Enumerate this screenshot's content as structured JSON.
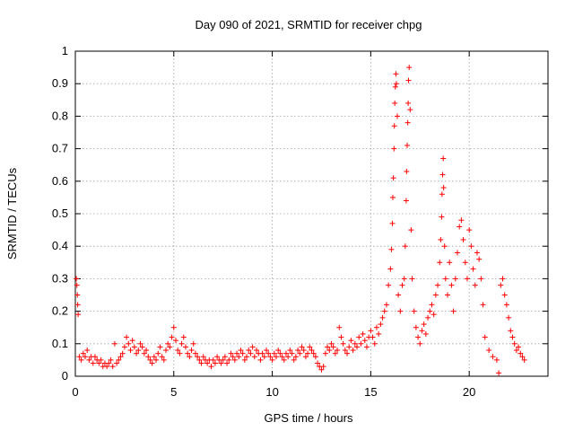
{
  "chart_data": {
    "type": "scatter",
    "title": "Day 090 of 2021, SRMTID for receiver chpg",
    "xlabel": "GPS time / hours",
    "ylabel": "SRMTID / TECUs",
    "xlim": [
      0,
      24
    ],
    "ylim": [
      0,
      1
    ],
    "xticks": [
      "0",
      "5",
      "10",
      "15",
      "20"
    ],
    "xtick_values": [
      0,
      5,
      10,
      15,
      20
    ],
    "yticks": [
      "0",
      "0.1",
      "0.2",
      "0.3",
      "0.4",
      "0.5",
      "0.6",
      "0.7",
      "0.8",
      "0.9",
      "1"
    ],
    "ytick_values": [
      0,
      0.1,
      0.2,
      0.3,
      0.4,
      0.5,
      0.6,
      0.7,
      0.8,
      0.9,
      1.0
    ],
    "grid": true,
    "marker": "+",
    "color": "#ff0000",
    "series": [
      {
        "name": "SRMTID",
        "points": [
          [
            0.05,
            0.3
          ],
          [
            0.08,
            0.28
          ],
          [
            0.1,
            0.25
          ],
          [
            0.12,
            0.22
          ],
          [
            0.14,
            0.19
          ],
          [
            0.2,
            0.06
          ],
          [
            0.3,
            0.05
          ],
          [
            0.4,
            0.07
          ],
          [
            0.5,
            0.06
          ],
          [
            0.6,
            0.08
          ],
          [
            0.7,
            0.05
          ],
          [
            0.8,
            0.06
          ],
          [
            0.9,
            0.04
          ],
          [
            1.0,
            0.06
          ],
          [
            1.1,
            0.05
          ],
          [
            1.2,
            0.04
          ],
          [
            1.3,
            0.05
          ],
          [
            1.4,
            0.03
          ],
          [
            1.5,
            0.04
          ],
          [
            1.6,
            0.03
          ],
          [
            1.7,
            0.04
          ],
          [
            1.8,
            0.05
          ],
          [
            1.9,
            0.03
          ],
          [
            2.0,
            0.1
          ],
          [
            2.1,
            0.04
          ],
          [
            2.2,
            0.05
          ],
          [
            2.3,
            0.06
          ],
          [
            2.4,
            0.07
          ],
          [
            2.5,
            0.09
          ],
          [
            2.6,
            0.12
          ],
          [
            2.7,
            0.1
          ],
          [
            2.8,
            0.08
          ],
          [
            2.9,
            0.11
          ],
          [
            3.0,
            0.09
          ],
          [
            3.1,
            0.07
          ],
          [
            3.2,
            0.08
          ],
          [
            3.3,
            0.1
          ],
          [
            3.4,
            0.09
          ],
          [
            3.5,
            0.07
          ],
          [
            3.6,
            0.08
          ],
          [
            3.7,
            0.06
          ],
          [
            3.8,
            0.05
          ],
          [
            3.9,
            0.04
          ],
          [
            4.0,
            0.06
          ],
          [
            4.1,
            0.05
          ],
          [
            4.2,
            0.07
          ],
          [
            4.3,
            0.09
          ],
          [
            4.4,
            0.06
          ],
          [
            4.5,
            0.05
          ],
          [
            4.6,
            0.08
          ],
          [
            4.7,
            0.1
          ],
          [
            4.8,
            0.09
          ],
          [
            4.9,
            0.12
          ],
          [
            5.0,
            0.15
          ],
          [
            5.1,
            0.11
          ],
          [
            5.2,
            0.08
          ],
          [
            5.3,
            0.07
          ],
          [
            5.4,
            0.1
          ],
          [
            5.5,
            0.12
          ],
          [
            5.6,
            0.09
          ],
          [
            5.7,
            0.07
          ],
          [
            5.8,
            0.06
          ],
          [
            5.9,
            0.08
          ],
          [
            6.0,
            0.1
          ],
          [
            6.1,
            0.07
          ],
          [
            6.2,
            0.06
          ],
          [
            6.3,
            0.05
          ],
          [
            6.4,
            0.04
          ],
          [
            6.5,
            0.06
          ],
          [
            6.6,
            0.05
          ],
          [
            6.7,
            0.04
          ],
          [
            6.8,
            0.05
          ],
          [
            6.9,
            0.03
          ],
          [
            7.0,
            0.05
          ],
          [
            7.1,
            0.04
          ],
          [
            7.2,
            0.06
          ],
          [
            7.3,
            0.05
          ],
          [
            7.4,
            0.04
          ],
          [
            7.5,
            0.05
          ],
          [
            7.6,
            0.06
          ],
          [
            7.7,
            0.04
          ],
          [
            7.8,
            0.05
          ],
          [
            7.9,
            0.07
          ],
          [
            8.0,
            0.06
          ],
          [
            8.1,
            0.05
          ],
          [
            8.2,
            0.07
          ],
          [
            8.3,
            0.06
          ],
          [
            8.4,
            0.08
          ],
          [
            8.5,
            0.07
          ],
          [
            8.6,
            0.05
          ],
          [
            8.7,
            0.06
          ],
          [
            8.8,
            0.08
          ],
          [
            8.9,
            0.07
          ],
          [
            9.0,
            0.09
          ],
          [
            9.1,
            0.06
          ],
          [
            9.2,
            0.08
          ],
          [
            9.3,
            0.07
          ],
          [
            9.4,
            0.05
          ],
          [
            9.5,
            0.07
          ],
          [
            9.6,
            0.06
          ],
          [
            9.7,
            0.08
          ],
          [
            9.8,
            0.07
          ],
          [
            9.9,
            0.06
          ],
          [
            10.0,
            0.05
          ],
          [
            10.1,
            0.07
          ],
          [
            10.2,
            0.06
          ],
          [
            10.3,
            0.08
          ],
          [
            10.4,
            0.07
          ],
          [
            10.5,
            0.06
          ],
          [
            10.6,
            0.05
          ],
          [
            10.7,
            0.07
          ],
          [
            10.8,
            0.06
          ],
          [
            10.9,
            0.08
          ],
          [
            11.0,
            0.07
          ],
          [
            11.1,
            0.05
          ],
          [
            11.2,
            0.06
          ],
          [
            11.3,
            0.08
          ],
          [
            11.4,
            0.07
          ],
          [
            11.5,
            0.09
          ],
          [
            11.6,
            0.08
          ],
          [
            11.7,
            0.06
          ],
          [
            11.8,
            0.07
          ],
          [
            11.9,
            0.09
          ],
          [
            12.0,
            0.08
          ],
          [
            12.1,
            0.07
          ],
          [
            12.2,
            0.06
          ],
          [
            12.3,
            0.04
          ],
          [
            12.4,
            0.03
          ],
          [
            12.5,
            0.02
          ],
          [
            12.6,
            0.03
          ],
          [
            12.7,
            0.07
          ],
          [
            12.8,
            0.09
          ],
          [
            12.9,
            0.08
          ],
          [
            13.0,
            0.1
          ],
          [
            13.1,
            0.09
          ],
          [
            13.2,
            0.07
          ],
          [
            13.3,
            0.08
          ],
          [
            13.4,
            0.15
          ],
          [
            13.5,
            0.12
          ],
          [
            13.6,
            0.1
          ],
          [
            13.7,
            0.08
          ],
          [
            13.8,
            0.07
          ],
          [
            13.9,
            0.09
          ],
          [
            14.0,
            0.11
          ],
          [
            14.1,
            0.08
          ],
          [
            14.2,
            0.1
          ],
          [
            14.3,
            0.09
          ],
          [
            14.4,
            0.12
          ],
          [
            14.5,
            0.1
          ],
          [
            14.6,
            0.13
          ],
          [
            14.7,
            0.11
          ],
          [
            14.8,
            0.09
          ],
          [
            14.9,
            0.12
          ],
          [
            15.0,
            0.14
          ],
          [
            15.1,
            0.12
          ],
          [
            15.2,
            0.1
          ],
          [
            15.3,
            0.15
          ],
          [
            15.4,
            0.13
          ],
          [
            15.5,
            0.16
          ],
          [
            15.6,
            0.18
          ],
          [
            15.7,
            0.2
          ],
          [
            15.8,
            0.22
          ],
          [
            15.9,
            0.28
          ],
          [
            16.0,
            0.33
          ],
          [
            16.05,
            0.39
          ],
          [
            16.1,
            0.47
          ],
          [
            16.12,
            0.55
          ],
          [
            16.15,
            0.61
          ],
          [
            16.18,
            0.7
          ],
          [
            16.2,
            0.77
          ],
          [
            16.22,
            0.84
          ],
          [
            16.25,
            0.89
          ],
          [
            16.28,
            0.93
          ],
          [
            16.3,
            0.9
          ],
          [
            16.35,
            0.8
          ],
          [
            16.4,
            0.25
          ],
          [
            16.5,
            0.2
          ],
          [
            16.6,
            0.28
          ],
          [
            16.7,
            0.3
          ],
          [
            16.75,
            0.4
          ],
          [
            16.8,
            0.54
          ],
          [
            16.82,
            0.63
          ],
          [
            16.85,
            0.71
          ],
          [
            16.88,
            0.78
          ],
          [
            16.9,
            0.84
          ],
          [
            16.92,
            0.91
          ],
          [
            16.95,
            0.95
          ],
          [
            17.0,
            0.82
          ],
          [
            17.05,
            0.45
          ],
          [
            17.1,
            0.3
          ],
          [
            17.2,
            0.2
          ],
          [
            17.3,
            0.15
          ],
          [
            17.4,
            0.12
          ],
          [
            17.5,
            0.1
          ],
          [
            17.6,
            0.14
          ],
          [
            17.7,
            0.16
          ],
          [
            17.8,
            0.13
          ],
          [
            17.9,
            0.18
          ],
          [
            18.0,
            0.2
          ],
          [
            18.1,
            0.22
          ],
          [
            18.2,
            0.19
          ],
          [
            18.3,
            0.25
          ],
          [
            18.4,
            0.28
          ],
          [
            18.5,
            0.35
          ],
          [
            18.55,
            0.42
          ],
          [
            18.6,
            0.49
          ],
          [
            18.62,
            0.56
          ],
          [
            18.65,
            0.62
          ],
          [
            18.68,
            0.67
          ],
          [
            18.7,
            0.58
          ],
          [
            18.75,
            0.4
          ],
          [
            18.8,
            0.3
          ],
          [
            18.9,
            0.25
          ],
          [
            19.0,
            0.35
          ],
          [
            19.1,
            0.28
          ],
          [
            19.2,
            0.2
          ],
          [
            19.3,
            0.3
          ],
          [
            19.4,
            0.38
          ],
          [
            19.5,
            0.46
          ],
          [
            19.6,
            0.48
          ],
          [
            19.7,
            0.42
          ],
          [
            19.8,
            0.35
          ],
          [
            19.9,
            0.3
          ],
          [
            20.0,
            0.45
          ],
          [
            20.1,
            0.4
          ],
          [
            20.2,
            0.33
          ],
          [
            20.3,
            0.28
          ],
          [
            20.4,
            0.38
          ],
          [
            20.5,
            0.36
          ],
          [
            20.6,
            0.3
          ],
          [
            20.7,
            0.22
          ],
          [
            20.8,
            0.12
          ],
          [
            21.0,
            0.08
          ],
          [
            21.2,
            0.06
          ],
          [
            21.4,
            0.05
          ],
          [
            21.5,
            0.01
          ],
          [
            21.6,
            0.28
          ],
          [
            21.7,
            0.3
          ],
          [
            21.8,
            0.25
          ],
          [
            21.9,
            0.22
          ],
          [
            22.0,
            0.18
          ],
          [
            22.1,
            0.14
          ],
          [
            22.2,
            0.12
          ],
          [
            22.3,
            0.1
          ],
          [
            22.4,
            0.08
          ],
          [
            22.5,
            0.09
          ],
          [
            22.6,
            0.07
          ],
          [
            22.7,
            0.06
          ],
          [
            22.8,
            0.05
          ]
        ]
      }
    ]
  }
}
